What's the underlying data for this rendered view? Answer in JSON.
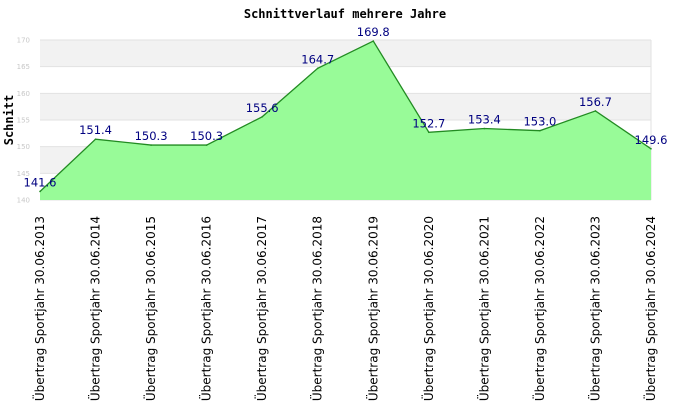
{
  "chart_data": {
    "type": "area",
    "title": "Schnittverlauf mehrere Jahre",
    "ylabel": "Schnitt",
    "xlabel": "",
    "ylim": [
      140,
      170
    ],
    "yticks": [
      140,
      145,
      150,
      155,
      160,
      165,
      170
    ],
    "grid": true,
    "legend": "none",
    "categories": [
      "Übertrag Sportjahr 30.06.2013",
      "Übertrag Sportjahr 30.06.2014",
      "Übertrag Sportjahr 30.06.2015",
      "Übertrag Sportjahr 30.06.2016",
      "Übertrag Sportjahr 30.06.2017",
      "Übertrag Sportjahr 30.06.2018",
      "Übertrag Sportjahr 30.06.2019",
      "Übertrag Sportjahr 30.06.2020",
      "Übertrag Sportjahr 30.06.2021",
      "Übertrag Sportjahr 30.06.2022",
      "Übertrag Sportjahr 30.06.2023",
      "Übertrag Sportjahr 30.06.2024"
    ],
    "values": [
      141.6,
      151.4,
      150.3,
      150.3,
      155.6,
      164.7,
      169.8,
      152.7,
      153.4,
      153.0,
      156.7,
      149.6
    ],
    "labels": [
      "141.6",
      "151.4",
      "150.3",
      "150.3",
      "155.6",
      "164.7",
      "169.8",
      "152.7",
      "153.4",
      "153.0",
      "156.7",
      "149.6"
    ],
    "colors": {
      "fill": "#98fb98",
      "line": "#228b22",
      "band": "#f2f2f2",
      "grid": "#e2e2e2",
      "label": "#000080"
    }
  }
}
